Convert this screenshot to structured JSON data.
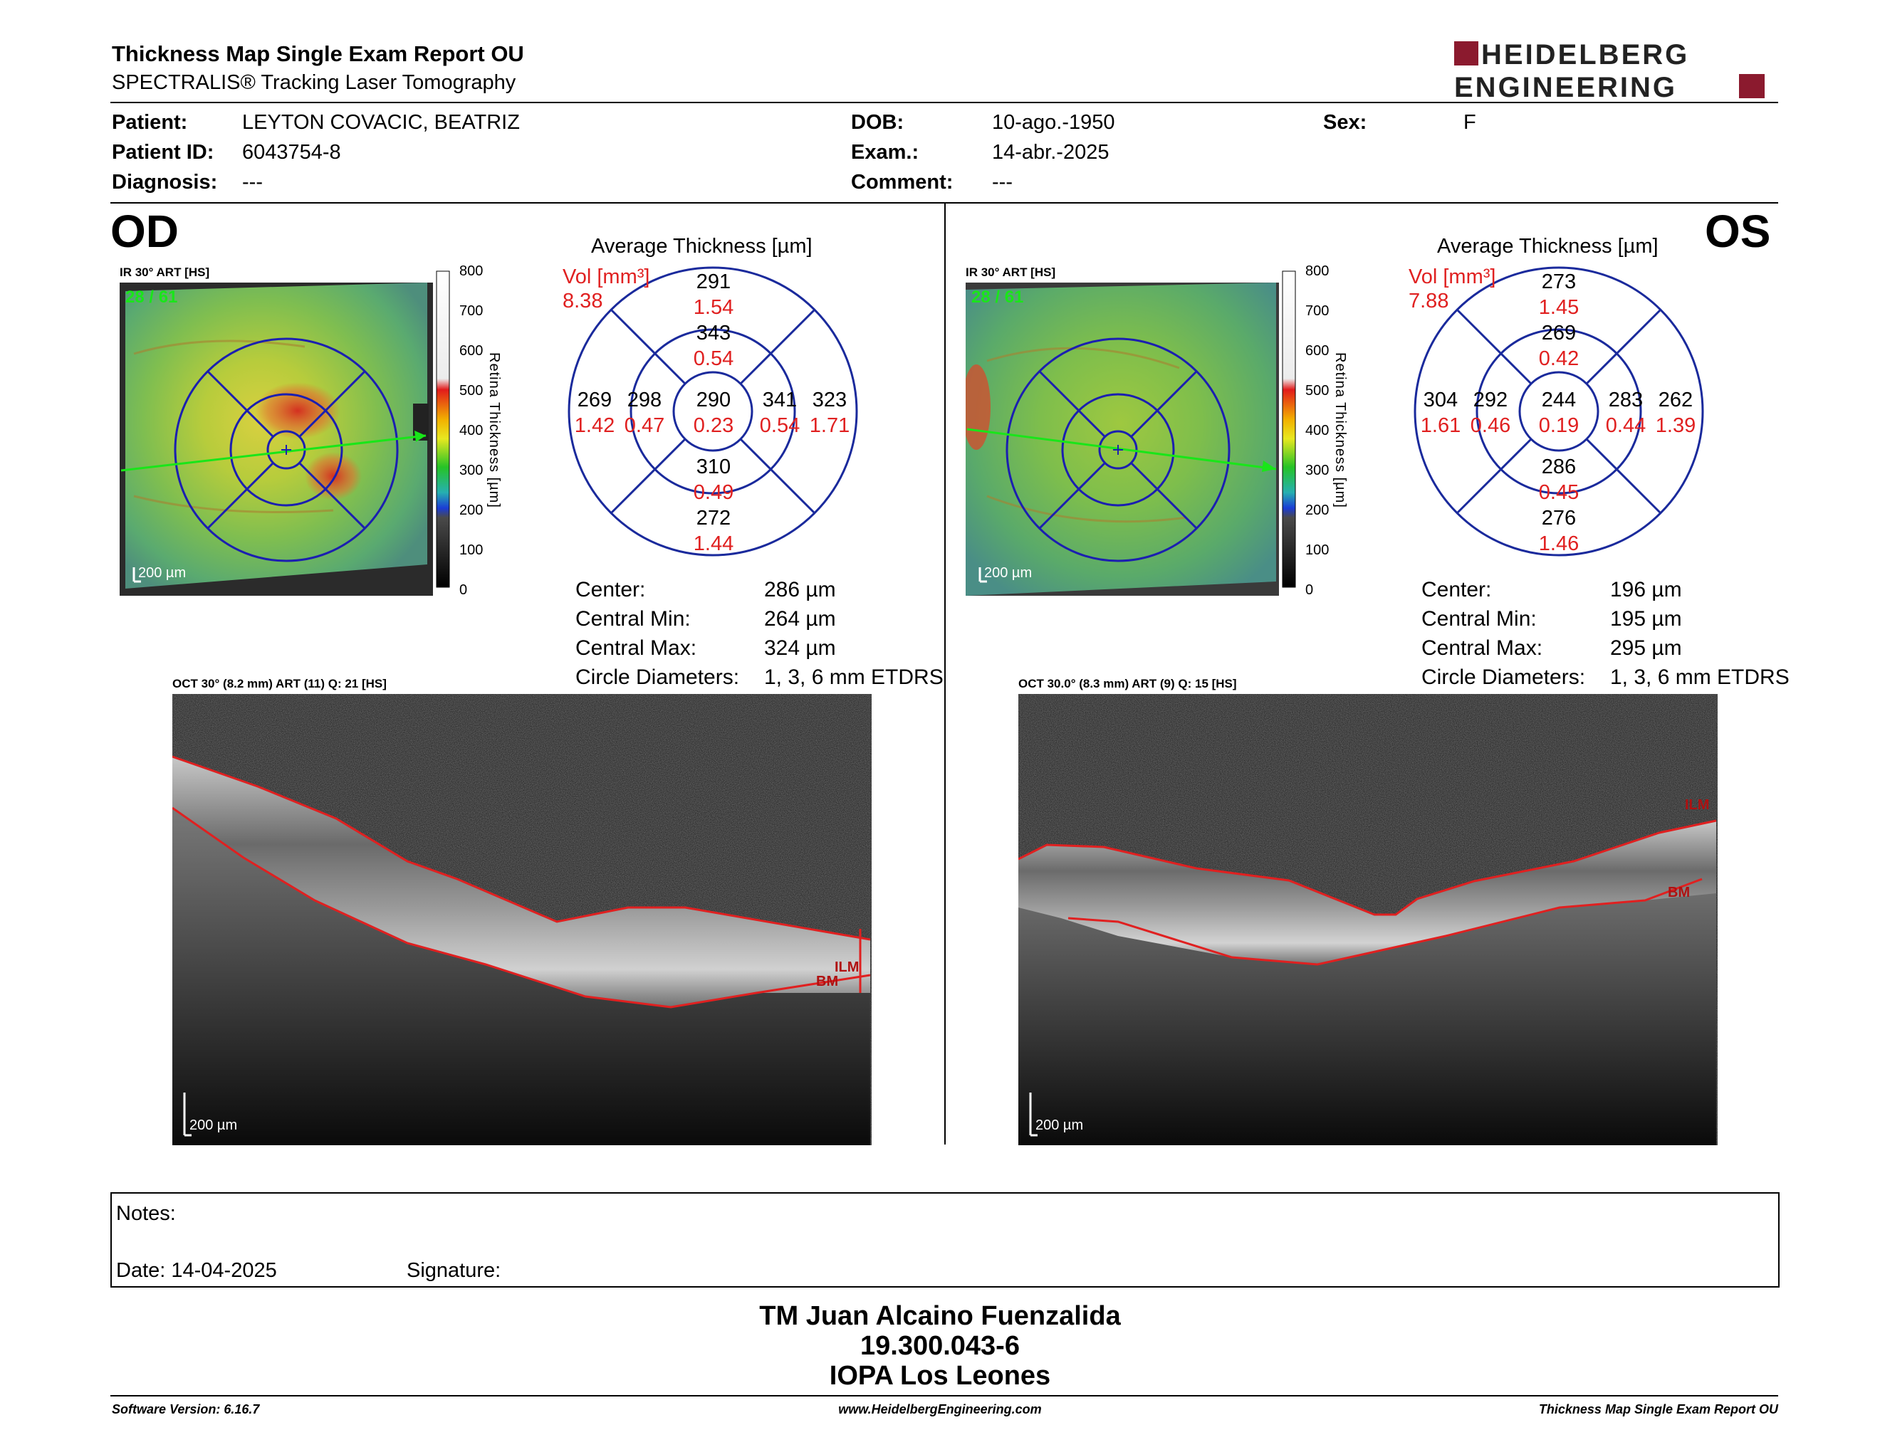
{
  "header": {
    "title": "Thickness Map Single Exam Report OU",
    "subtitle": "SPECTRALIS® Tracking Laser Tomography",
    "logo_line1": "HEIDELBERG",
    "logo_line2": "ENGINEERING",
    "brand_color": "#8b1a2e"
  },
  "patient": {
    "patient_label": "Patient:",
    "patient_value": "LEYTON COVACIC, BEATRIZ",
    "id_label": "Patient ID:",
    "id_value": "6043754-8",
    "diag_label": "Diagnosis:",
    "diag_value": "---",
    "dob_label": "DOB:",
    "dob_value": "10-ago.-1950",
    "exam_label": "Exam.:",
    "exam_value": "14-abr.-2025",
    "comment_label": "Comment:",
    "comment_value": "---",
    "sex_label": "Sex:",
    "sex_value": "F"
  },
  "od": {
    "eye_label": "OD",
    "ir_label": "IR 30° ART [HS]",
    "frame_count": "28 / 61",
    "scale_label": "200 µm",
    "colorbar_ticks": [
      "800",
      "700",
      "600",
      "500",
      "400",
      "300",
      "200",
      "100",
      "0"
    ],
    "colorbar_title": "Retina Thickness [µm]",
    "avg_title": "Average Thickness [µm]",
    "vol_label": "Vol [mm³]",
    "vol_value": "8.38",
    "sectors": {
      "outer_top": {
        "t": "291",
        "v": "1.54"
      },
      "inner_top": {
        "t": "343",
        "v": "0.54"
      },
      "outer_left": {
        "t": "269",
        "v": "1.42"
      },
      "inner_left": {
        "t": "298",
        "v": "0.47"
      },
      "center": {
        "t": "290",
        "v": "0.23"
      },
      "inner_right": {
        "t": "341",
        "v": "0.54"
      },
      "outer_right": {
        "t": "323",
        "v": "1.71"
      },
      "inner_bottom": {
        "t": "310",
        "v": "0.49"
      },
      "outer_bottom": {
        "t": "272",
        "v": "1.44"
      }
    },
    "stats": [
      {
        "label": "Center:",
        "value": "286 µm"
      },
      {
        "label": "Central Min:",
        "value": "264 µm"
      },
      {
        "label": "Central Max:",
        "value": "324 µm"
      },
      {
        "label": "Circle Diameters:",
        "value": "1, 3, 6 mm ETDRS"
      }
    ],
    "oct_label": "OCT 30° (8.2 mm) ART (11) Q: 21 [HS]",
    "oct_ilm": "ILM",
    "oct_bm": "BM",
    "oct_scale": "200 µm"
  },
  "os": {
    "eye_label": "OS",
    "ir_label": "IR 30° ART [HS]",
    "frame_count": "28 / 61",
    "scale_label": "200 µm",
    "colorbar_ticks": [
      "800",
      "700",
      "600",
      "500",
      "400",
      "300",
      "200",
      "100",
      "0"
    ],
    "colorbar_title": "Retina Thickness [µm]",
    "avg_title": "Average Thickness [µm]",
    "vol_label": "Vol [mm³]",
    "vol_value": "7.88",
    "sectors": {
      "outer_top": {
        "t": "273",
        "v": "1.45"
      },
      "inner_top": {
        "t": "269",
        "v": "0.42"
      },
      "outer_left": {
        "t": "304",
        "v": "1.61"
      },
      "inner_left": {
        "t": "292",
        "v": "0.46"
      },
      "center": {
        "t": "244",
        "v": "0.19"
      },
      "inner_right": {
        "t": "283",
        "v": "0.44"
      },
      "outer_right": {
        "t": "262",
        "v": "1.39"
      },
      "inner_bottom": {
        "t": "286",
        "v": "0.45"
      },
      "outer_bottom": {
        "t": "276",
        "v": "1.46"
      }
    },
    "stats": [
      {
        "label": "Center:",
        "value": "196 µm"
      },
      {
        "label": "Central Min:",
        "value": "195 µm"
      },
      {
        "label": "Central Max:",
        "value": "295 µm"
      },
      {
        "label": "Circle Diameters:",
        "value": "1, 3, 6 mm ETDRS"
      }
    ],
    "oct_label": "OCT 30.0° (8.3 mm) ART (9) Q: 15 [HS]",
    "oct_ilm": "ILM",
    "oct_bm": "BM",
    "oct_scale": "200 µm"
  },
  "notes": {
    "notes_label": "Notes:",
    "date_label": "Date: 14-04-2025",
    "signature_label": "Signature:"
  },
  "signature_block": {
    "name": "TM Juan Alcaino Fuenzalida",
    "id": "19.300.043-6",
    "org": "IOPA Los Leones"
  },
  "footer": {
    "software": "Software Version: 6.16.7",
    "website": "www.HeidelbergEngineering.com",
    "report_name": "Thickness Map Single Exam Report OU"
  },
  "colors": {
    "vol_red": "#e02020",
    "grid_blue": "#1a2a9c",
    "layer_red": "#e02020",
    "frame_green": "#19e619"
  }
}
